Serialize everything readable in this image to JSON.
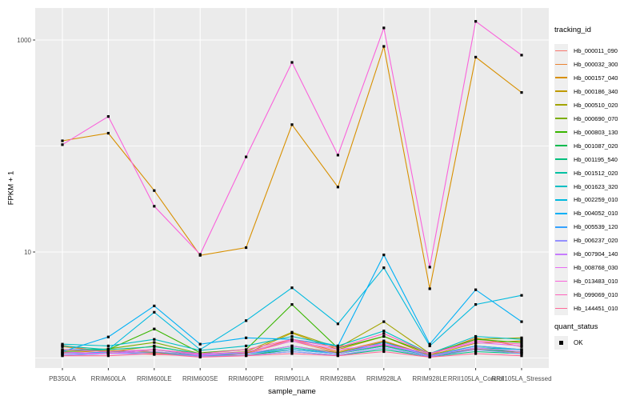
{
  "axes": {
    "x_title": "sample_name",
    "y_title": "FPKM + 1"
  },
  "legend": {
    "tracking_title": "tracking_id",
    "quant_title": "quant_status",
    "quant_items": [
      {
        "label": "OK",
        "marker": "black-square"
      }
    ]
  },
  "colors": {
    "panel_bg": "#EBEBEB",
    "grid": "#FFFFFF",
    "axis_text": "#4D4D4D",
    "tick_mark": "#333333",
    "title_text": "#000000",
    "legend_key_bg": "#EFEFEF",
    "marker": "#000000"
  },
  "chart_data": {
    "type": "line",
    "xlabel": "sample_name",
    "ylabel": "FPKM + 1",
    "y_scale": "log10",
    "grid": "on",
    "legend_position": "right",
    "marker": "small black square (quant_status OK)",
    "y_major_breaks": [
      {
        "value": 10,
        "label": "10"
      },
      {
        "value": 1000,
        "label": "1000"
      }
    ],
    "y_minor_breaks": [
      1,
      100
    ],
    "ylim": [
      1,
      1600
    ],
    "x": [
      "PB350LA",
      "RRIM600LA",
      "RRIM600LE",
      "RRIM600SE",
      "RRIM600PE",
      "RRIM901LA",
      "RRIM928BA",
      "RRIM928LA",
      "RRIM928LE",
      "RRII105LA_Control",
      "RRII105LA_Stressed"
    ],
    "series": [
      {
        "name": "Hb_000011_090",
        "color": "#F8766D",
        "values": [
          1.32,
          1.12,
          1.08,
          1.05,
          1.1,
          1.45,
          1.12,
          1.32,
          1.05,
          1.22,
          1.12
        ]
      },
      {
        "name": "Hb_000032_300",
        "color": "#EA8331",
        "values": [
          1.28,
          1.15,
          1.12,
          1.06,
          1.12,
          1.5,
          1.15,
          1.45,
          1.06,
          1.55,
          1.28
        ]
      },
      {
        "name": "Hb_000157_040",
        "color": "#D89000",
        "values": [
          112,
          132,
          38,
          9.3,
          11,
          159,
          41,
          870,
          4.5,
          690,
          320
        ]
      },
      {
        "name": "Hb_000186_340",
        "color": "#C09B00",
        "values": [
          1.12,
          1.18,
          1.15,
          1.05,
          1.1,
          1.72,
          1.2,
          1.6,
          1.06,
          1.38,
          1.45
        ]
      },
      {
        "name": "Hb_000510_020",
        "color": "#A3A500",
        "values": [
          1.1,
          1.14,
          1.3,
          1.08,
          1.15,
          1.75,
          1.25,
          2.2,
          1.1,
          1.5,
          1.55
        ]
      },
      {
        "name": "Hb_000690_070",
        "color": "#7CAE00",
        "values": [
          1.18,
          1.22,
          1.4,
          1.1,
          1.1,
          1.3,
          1.12,
          1.42,
          1.06,
          1.3,
          1.2
        ]
      },
      {
        "name": "Hb_000803_130",
        "color": "#39B600",
        "values": [
          1.15,
          1.2,
          1.88,
          1.12,
          1.2,
          3.2,
          1.24,
          1.6,
          1.1,
          1.5,
          1.4
        ]
      },
      {
        "name": "Hb_001087_020",
        "color": "#00BB4E",
        "values": [
          1.1,
          1.1,
          1.2,
          1.06,
          1.06,
          1.2,
          1.1,
          1.3,
          1.05,
          1.2,
          1.15
        ]
      },
      {
        "name": "Hb_001195_540",
        "color": "#00BF7D",
        "values": [
          1.06,
          1.1,
          1.14,
          1.04,
          1.06,
          1.15,
          1.06,
          1.2,
          1.03,
          1.15,
          1.1
        ]
      },
      {
        "name": "Hb_001512_020",
        "color": "#00C1A3",
        "values": [
          1.3,
          1.2,
          1.28,
          1.1,
          1.1,
          1.25,
          1.1,
          1.3,
          1.05,
          1.25,
          1.2
        ]
      },
      {
        "name": "Hb_001623_320",
        "color": "#00BFC4",
        "values": [
          1.35,
          1.3,
          1.5,
          1.18,
          1.3,
          1.6,
          1.3,
          1.8,
          1.1,
          1.6,
          1.5
        ]
      },
      {
        "name": "Hb_002259_010",
        "color": "#00BADE",
        "values": [
          1.2,
          1.2,
          2.7,
          1.2,
          2.25,
          4.6,
          2.1,
          7.1,
          1.3,
          3.2,
          3.9
        ]
      },
      {
        "name": "Hb_004052_010",
        "color": "#00B0F6",
        "values": [
          1.15,
          1.58,
          3.1,
          1.35,
          1.55,
          1.5,
          1.3,
          9.4,
          1.35,
          4.4,
          2.2
        ]
      },
      {
        "name": "Hb_005539_120",
        "color": "#35A2FF",
        "values": [
          1.1,
          1.14,
          1.2,
          1.08,
          1.1,
          1.2,
          1.1,
          1.4,
          1.05,
          1.3,
          1.2
        ]
      },
      {
        "name": "Hb_006237_020",
        "color": "#9590FF",
        "values": [
          1.06,
          1.1,
          1.1,
          1.04,
          1.06,
          1.15,
          1.06,
          1.25,
          1.03,
          1.2,
          1.1
        ]
      },
      {
        "name": "Hb_007904_140",
        "color": "#C77CFF",
        "values": [
          1.1,
          1.1,
          1.15,
          1.06,
          1.1,
          1.3,
          1.1,
          1.35,
          1.05,
          1.25,
          1.15
        ]
      },
      {
        "name": "Hb_008768_030",
        "color": "#E76BF3",
        "values": [
          1.14,
          1.1,
          1.2,
          1.08,
          1.14,
          1.45,
          1.2,
          1.35,
          1.1,
          1.4,
          1.3
        ]
      },
      {
        "name": "Hb_013483_010",
        "color": "#FA62DB",
        "values": [
          103,
          190,
          27,
          9.5,
          79,
          615,
          82,
          1300,
          7.2,
          1500,
          720
        ]
      },
      {
        "name": "Hb_099069_010",
        "color": "#FF62BC",
        "values": [
          1.2,
          1.15,
          1.2,
          1.1,
          1.2,
          1.5,
          1.25,
          1.7,
          1.1,
          1.45,
          1.35
        ]
      },
      {
        "name": "Hb_144451_010",
        "color": "#FF6A98",
        "values": [
          1.05,
          1.05,
          1.1,
          1.02,
          1.05,
          1.1,
          1.05,
          1.15,
          1.02,
          1.1,
          1.05
        ]
      }
    ]
  }
}
